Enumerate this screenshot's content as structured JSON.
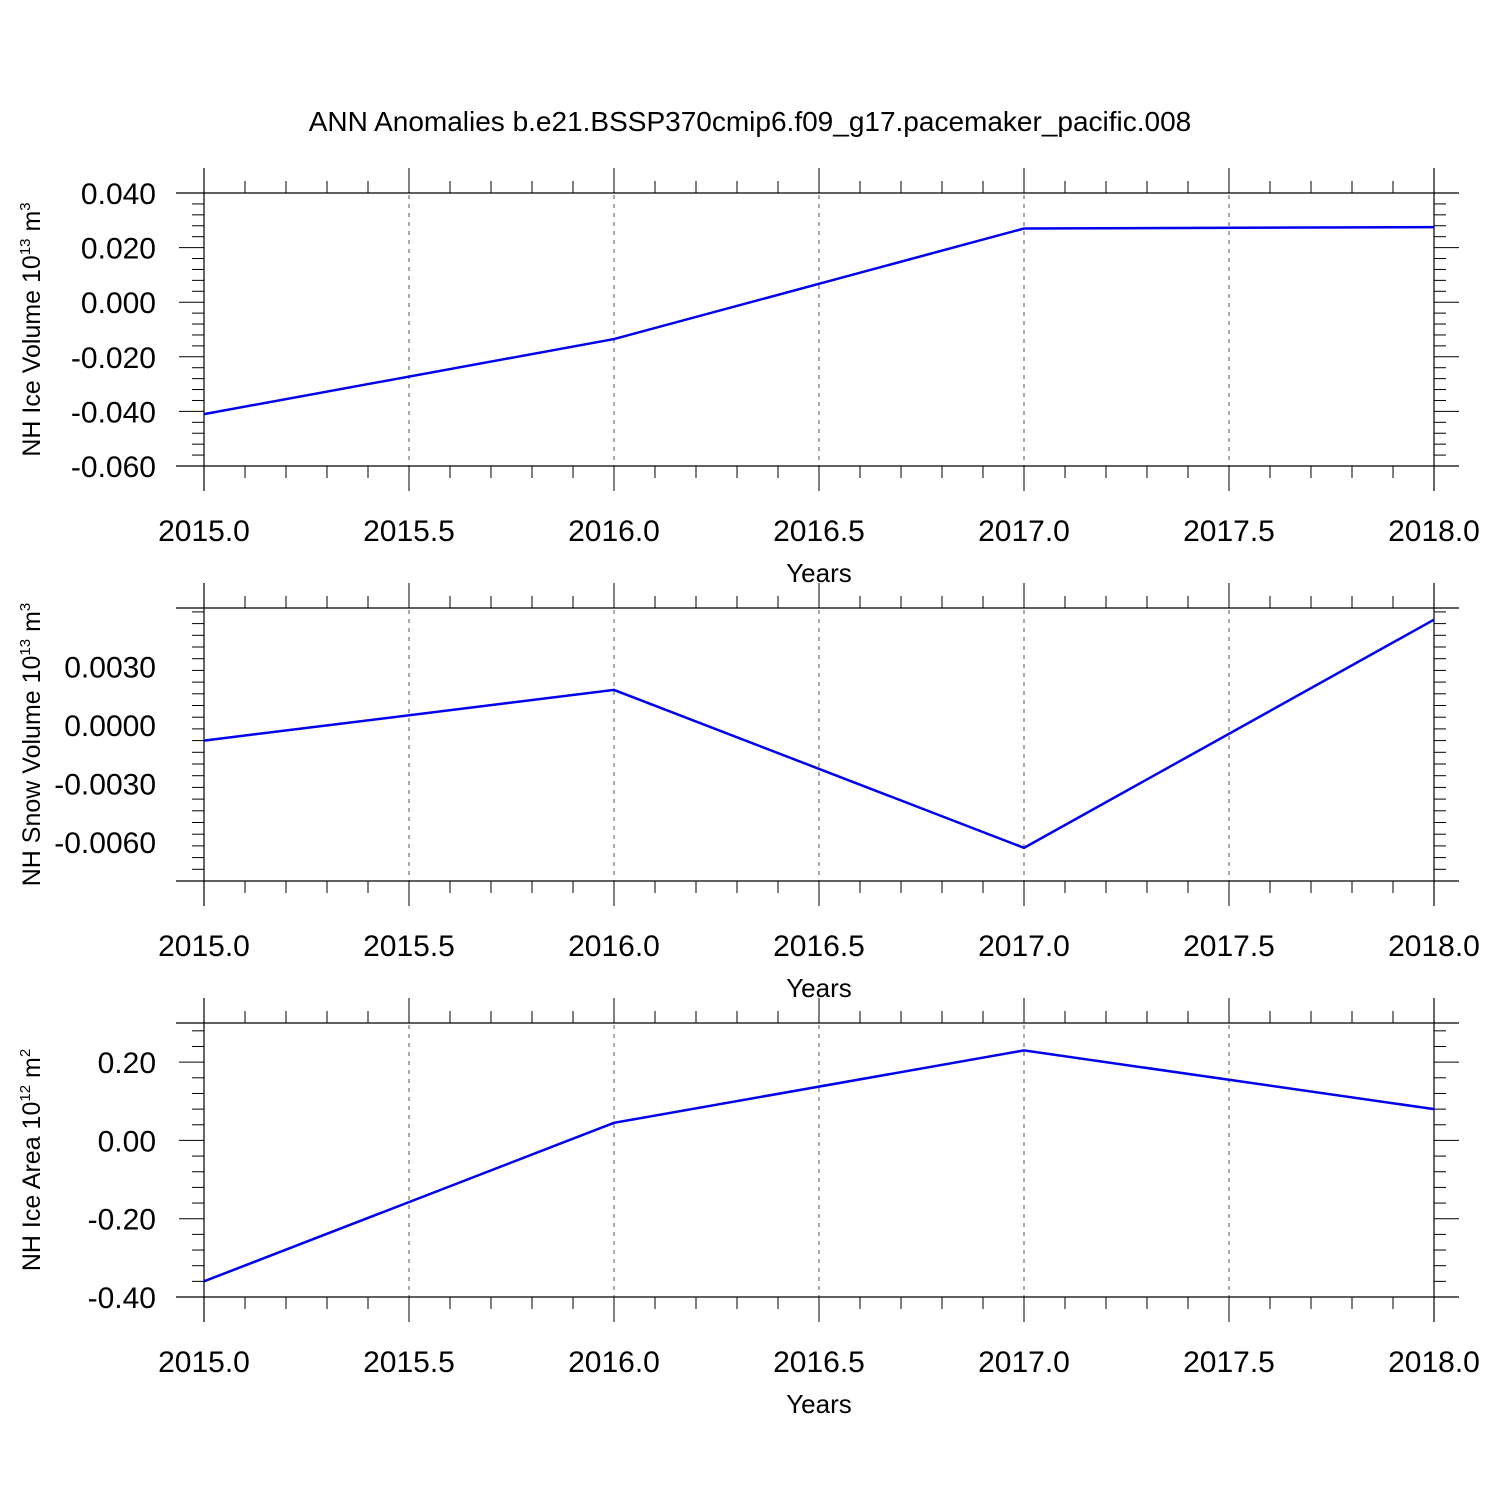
{
  "title": "ANN Anomalies b.e21.BSSP370cmip6.f09_g17.pacemaker_pacific.008",
  "colors": {
    "line": "#0000ee",
    "axis": "#000000",
    "grid": "#555555"
  },
  "chart_data": [
    {
      "type": "line",
      "xlabel": "Years",
      "ylabel": {
        "main": "NH Ice Volume 10",
        "sup": "13",
        "unit": " m",
        "unit_sup": "3"
      },
      "x": [
        2015,
        2016,
        2017,
        2018
      ],
      "series": [
        {
          "values": [
            -0.041,
            -0.0135,
            0.027,
            0.0275
          ]
        }
      ],
      "xlim": [
        2015.0,
        2018.0
      ],
      "ylim": [
        -0.06,
        0.04
      ],
      "xticks": [
        "2015.0",
        "2015.5",
        "2016.0",
        "2016.5",
        "2017.0",
        "2017.5",
        "2018.0"
      ],
      "yticks": [
        {
          "v": -0.06,
          "label": "-0.060"
        },
        {
          "v": -0.04,
          "label": "-0.040"
        },
        {
          "v": -0.02,
          "label": "-0.020"
        },
        {
          "v": 0.0,
          "label": "0.000"
        },
        {
          "v": 0.02,
          "label": "0.020"
        },
        {
          "v": 0.04,
          "label": "0.040"
        }
      ],
      "grid": "vertical dashed"
    },
    {
      "type": "line",
      "xlabel": "Years",
      "ylabel": {
        "main": "NH Snow Volume 10",
        "sup": "13",
        "unit": " m",
        "unit_sup": "3"
      },
      "x": [
        2015,
        2016,
        2017,
        2018
      ],
      "series": [
        {
          "values": [
            -0.0008,
            0.0018,
            -0.0063,
            0.0054
          ]
        }
      ],
      "xlim": [
        2015.0,
        2018.0
      ],
      "ylim": [
        -0.008,
        0.006
      ],
      "xticks": [
        "2015.0",
        "2015.5",
        "2016.0",
        "2016.5",
        "2017.0",
        "2017.5",
        "2018.0"
      ],
      "yticks": [
        {
          "v": -0.006,
          "label": "-0.0060"
        },
        {
          "v": -0.003,
          "label": "-0.0030"
        },
        {
          "v": 0.0,
          "label": "0.0000"
        },
        {
          "v": 0.003,
          "label": "0.0030"
        }
      ],
      "grid": "vertical dashed"
    },
    {
      "type": "line",
      "xlabel": "Years",
      "ylabel": {
        "main": "NH Ice Area 10",
        "sup": "12",
        "unit": " m",
        "unit_sup": "2"
      },
      "x": [
        2015,
        2016,
        2017,
        2018
      ],
      "series": [
        {
          "values": [
            -0.36,
            0.045,
            0.23,
            0.08
          ]
        }
      ],
      "xlim": [
        2015.0,
        2018.0
      ],
      "ylim": [
        -0.4,
        0.3
      ],
      "xticks": [
        "2015.0",
        "2015.5",
        "2016.0",
        "2016.5",
        "2017.0",
        "2017.5",
        "2018.0"
      ],
      "yticks": [
        {
          "v": -0.4,
          "label": "-0.40"
        },
        {
          "v": -0.2,
          "label": "-0.20"
        },
        {
          "v": 0.0,
          "label": "0.00"
        },
        {
          "v": 0.2,
          "label": "0.20"
        }
      ],
      "grid": "vertical dashed"
    }
  ]
}
